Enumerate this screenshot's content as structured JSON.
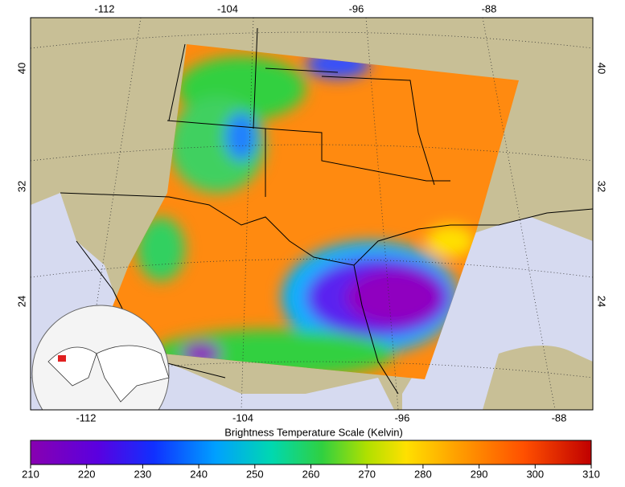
{
  "map": {
    "lon_labels_top": [
      -112,
      -104,
      -96,
      -88
    ],
    "lon_labels_bottom": [
      -112,
      -104,
      -96,
      -88
    ],
    "lat_labels_left": [
      40,
      32,
      24
    ],
    "lat_labels_right": [
      40,
      32,
      24
    ]
  },
  "colorbar": {
    "title": "Brightness Temperature Scale (Kelvin)",
    "ticks": [
      210,
      220,
      230,
      240,
      250,
      260,
      270,
      280,
      290,
      300,
      310
    ]
  }
}
